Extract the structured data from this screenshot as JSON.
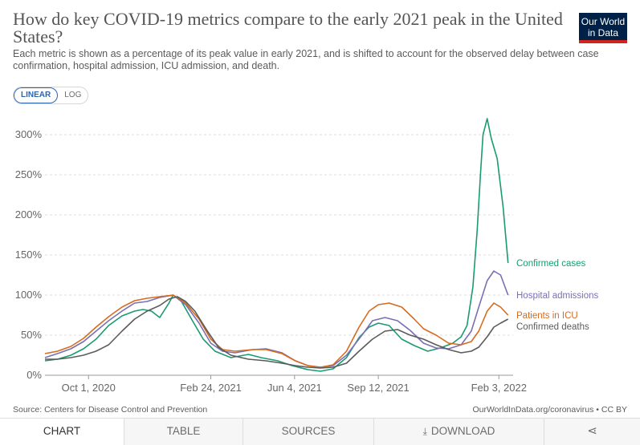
{
  "header": {
    "title": "How do key COVID-19 metrics compare to the early 2021 peak in the United States?",
    "subtitle": "Each metric is shown as a percentage of its peak value in early 2021, and is shifted to account for the observed delay between case confirmation, hospital admission, ICU admission, and death.",
    "logo_line1": "Our World",
    "logo_line2": "in Data"
  },
  "controls": {
    "linear_label": "LINEAR",
    "log_label": "LOG",
    "active": "LINEAR"
  },
  "footer": {
    "source": "Source: Centers for Disease Control and Prevention",
    "credit": "OurWorldInData.org/coronavirus • CC BY"
  },
  "tabs": {
    "chart": "CHART",
    "table": "TABLE",
    "sources": "SOURCES",
    "download": "DOWNLOAD",
    "download_icon": "download-icon",
    "share_icon": "share-icon",
    "share_glyph": "⋖"
  },
  "chart_data": {
    "type": "line",
    "title": "",
    "xlabel": "",
    "ylabel": "",
    "x_axis_type": "date",
    "xlim": [
      "2020-08-10",
      "2022-02-20"
    ],
    "ylim": [
      0,
      330
    ],
    "y_ticks": [
      0,
      50,
      100,
      150,
      200,
      250,
      300
    ],
    "y_tick_labels": [
      "0%",
      "50%",
      "100%",
      "150%",
      "200%",
      "250%",
      "300%"
    ],
    "y_unit": "%",
    "x_ticks": [
      "2020-10-01",
      "2021-02-24",
      "2021-06-04",
      "2021-09-12",
      "2022-02-03"
    ],
    "x_tick_labels": [
      "Oct 1, 2020",
      "Feb 24, 2021",
      "Jun 4, 2021",
      "Sep 12, 2021",
      "Feb 3, 2022"
    ],
    "grid": "horizontal dashed",
    "legend": "right, at line ends",
    "series": [
      {
        "name": "Confirmed cases",
        "color": "#1a9b71",
        "x": [
          "2020-08-10",
          "2020-08-25",
          "2020-09-10",
          "2020-09-25",
          "2020-10-10",
          "2020-10-25",
          "2020-11-10",
          "2020-11-25",
          "2020-12-05",
          "2020-12-15",
          "2020-12-25",
          "2021-01-05",
          "2021-01-10",
          "2021-01-20",
          "2021-02-01",
          "2021-02-15",
          "2021-03-01",
          "2021-03-20",
          "2021-04-10",
          "2021-04-25",
          "2021-05-15",
          "2021-06-01",
          "2021-06-20",
          "2021-07-05",
          "2021-07-20",
          "2021-08-05",
          "2021-08-20",
          "2021-09-01",
          "2021-09-12",
          "2021-09-25",
          "2021-10-10",
          "2021-10-25",
          "2021-11-10",
          "2021-11-25",
          "2021-12-10",
          "2021-12-20",
          "2021-12-27",
          "2022-01-03",
          "2022-01-08",
          "2022-01-12",
          "2022-01-15",
          "2022-01-20",
          "2022-01-25",
          "2022-02-01",
          "2022-02-08",
          "2022-02-14"
        ],
        "values": [
          18,
          20,
          25,
          33,
          45,
          62,
          74,
          80,
          82,
          80,
          72,
          90,
          100,
          92,
          70,
          45,
          30,
          22,
          26,
          22,
          18,
          12,
          7,
          5,
          8,
          22,
          47,
          60,
          65,
          62,
          45,
          37,
          30,
          34,
          40,
          48,
          62,
          110,
          180,
          250,
          300,
          320,
          295,
          270,
          210,
          140
        ]
      },
      {
        "name": "Hospital admissions",
        "color": "#7b6fb4",
        "x": [
          "2020-08-10",
          "2020-08-25",
          "2020-09-10",
          "2020-09-25",
          "2020-10-10",
          "2020-10-25",
          "2020-11-10",
          "2020-11-25",
          "2020-12-10",
          "2020-12-25",
          "2021-01-10",
          "2021-01-25",
          "2021-02-10",
          "2021-02-24",
          "2021-03-10",
          "2021-03-25",
          "2021-04-15",
          "2021-05-01",
          "2021-05-20",
          "2021-06-05",
          "2021-06-20",
          "2021-07-05",
          "2021-07-20",
          "2021-08-05",
          "2021-08-25",
          "2021-09-05",
          "2021-09-20",
          "2021-10-05",
          "2021-10-20",
          "2021-11-05",
          "2021-11-20",
          "2021-12-05",
          "2021-12-20",
          "2022-01-01",
          "2022-01-10",
          "2022-01-20",
          "2022-01-28",
          "2022-02-05",
          "2022-02-14"
        ],
        "values": [
          22,
          27,
          33,
          42,
          55,
          68,
          80,
          90,
          92,
          97,
          100,
          88,
          65,
          40,
          30,
          28,
          32,
          33,
          28,
          18,
          12,
          10,
          12,
          25,
          52,
          68,
          72,
          68,
          56,
          40,
          34,
          33,
          38,
          55,
          85,
          118,
          130,
          125,
          100
        ]
      },
      {
        "name": "Patients in ICU",
        "color": "#d66b1d",
        "x": [
          "2020-08-10",
          "2020-08-25",
          "2020-09-10",
          "2020-09-25",
          "2020-10-10",
          "2020-10-25",
          "2020-11-10",
          "2020-11-25",
          "2020-12-10",
          "2020-12-25",
          "2021-01-10",
          "2021-01-25",
          "2021-02-10",
          "2021-02-24",
          "2021-03-10",
          "2021-03-25",
          "2021-04-15",
          "2021-05-01",
          "2021-05-20",
          "2021-06-05",
          "2021-06-20",
          "2021-07-05",
          "2021-07-20",
          "2021-08-05",
          "2021-08-20",
          "2021-09-01",
          "2021-09-12",
          "2021-09-25",
          "2021-10-10",
          "2021-10-25",
          "2021-11-05",
          "2021-11-20",
          "2021-12-05",
          "2021-12-20",
          "2022-01-01",
          "2022-01-10",
          "2022-01-20",
          "2022-01-28",
          "2022-02-05",
          "2022-02-14"
        ],
        "values": [
          27,
          30,
          36,
          46,
          60,
          73,
          85,
          93,
          96,
          98,
          100,
          90,
          70,
          45,
          32,
          30,
          32,
          32,
          27,
          18,
          12,
          10,
          13,
          30,
          60,
          80,
          88,
          90,
          85,
          70,
          58,
          50,
          40,
          38,
          42,
          55,
          80,
          90,
          85,
          75
        ]
      },
      {
        "name": "Confirmed deaths",
        "color": "#5b5b5b",
        "x": [
          "2020-08-10",
          "2020-08-25",
          "2020-09-10",
          "2020-09-25",
          "2020-10-10",
          "2020-10-25",
          "2020-11-10",
          "2020-11-25",
          "2020-12-10",
          "2020-12-25",
          "2021-01-05",
          "2021-01-15",
          "2021-01-25",
          "2021-02-05",
          "2021-02-20",
          "2021-03-05",
          "2021-03-20",
          "2021-04-10",
          "2021-05-01",
          "2021-05-20",
          "2021-06-05",
          "2021-06-20",
          "2021-07-05",
          "2021-07-20",
          "2021-08-05",
          "2021-08-20",
          "2021-09-05",
          "2021-09-20",
          "2021-10-05",
          "2021-10-20",
          "2021-11-05",
          "2021-11-20",
          "2021-12-05",
          "2021-12-20",
          "2022-01-01",
          "2022-01-10",
          "2022-01-20",
          "2022-01-28",
          "2022-02-05",
          "2022-02-14"
        ],
        "values": [
          20,
          20,
          22,
          25,
          30,
          38,
          55,
          70,
          80,
          87,
          95,
          98,
          92,
          80,
          55,
          35,
          25,
          20,
          18,
          15,
          12,
          10,
          9,
          10,
          15,
          30,
          45,
          55,
          57,
          50,
          45,
          38,
          32,
          28,
          30,
          35,
          48,
          60,
          65,
          70
        ]
      }
    ]
  }
}
